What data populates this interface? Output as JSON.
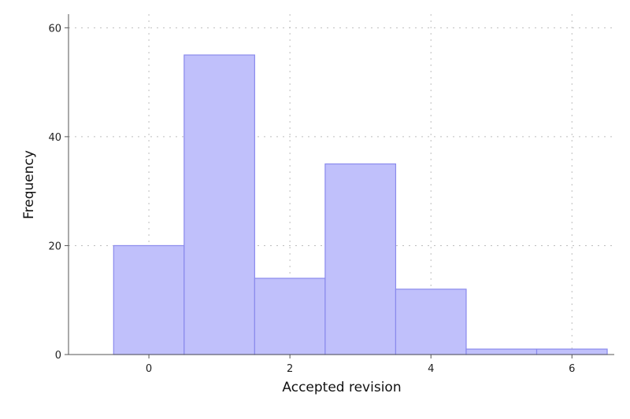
{
  "chart_data": {
    "type": "bar",
    "subtype": "histogram",
    "bins": [
      {
        "x_start": -0.5,
        "x_end": 0.5,
        "value": 20
      },
      {
        "x_start": 0.5,
        "x_end": 1.5,
        "value": 55
      },
      {
        "x_start": 1.5,
        "x_end": 2.5,
        "value": 14
      },
      {
        "x_start": 2.5,
        "x_end": 3.5,
        "value": 35
      },
      {
        "x_start": 3.5,
        "x_end": 4.5,
        "value": 12
      },
      {
        "x_start": 4.5,
        "x_end": 5.5,
        "value": 1
      },
      {
        "x_start": 5.5,
        "x_end": 6.5,
        "value": 1
      }
    ],
    "xlabel": "Accepted revision",
    "ylabel": "Frequency",
    "xlim": [
      -1.14,
      6.6
    ],
    "ylim": [
      0,
      62.5
    ],
    "xticks": [
      0,
      2,
      4,
      6
    ],
    "yticks": [
      0,
      20,
      40,
      60
    ],
    "grid": true,
    "legend": "none",
    "colors": {
      "bar_fill": "#c0c0fb",
      "bar_stroke": "#8a8aec"
    }
  }
}
